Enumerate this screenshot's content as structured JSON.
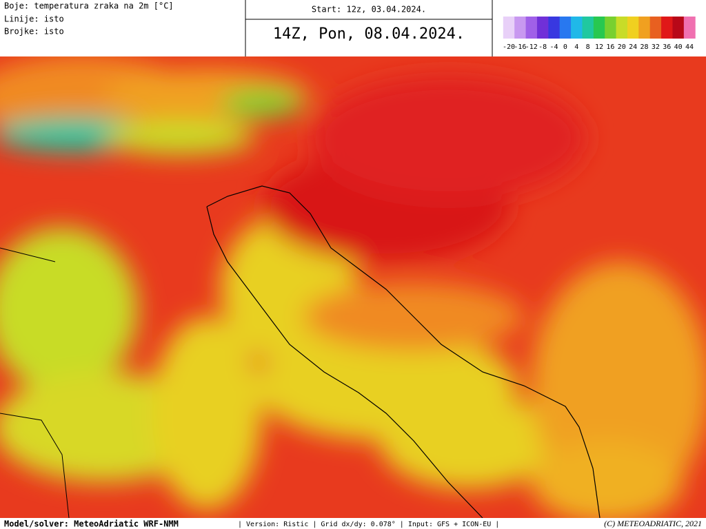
{
  "header": {
    "legend_lines": [
      "Boje: temperatura zraka na 2m [°C]",
      "Linije: isto",
      "Brojke: isto"
    ],
    "start": "Start: 12z, 03.04.2024.",
    "valid": "14Z, Pon, 08.04.2024."
  },
  "colorbar": {
    "ticks": [
      -20,
      -16,
      -12,
      -8,
      -4,
      0,
      4,
      8,
      12,
      16,
      20,
      24,
      28,
      32,
      36,
      40,
      44
    ],
    "colors": [
      "#e8d0f8",
      "#c898f0",
      "#a060e8",
      "#7030d8",
      "#3838e0",
      "#2878f0",
      "#20b8e8",
      "#20c8a0",
      "#28c850",
      "#78d030",
      "#c8dc28",
      "#f0d020",
      "#f0a020",
      "#e86020",
      "#e01818",
      "#b80818",
      "#f070b0"
    ]
  },
  "footer": {
    "model": "Model/solver: MeteoAdriatic WRF-NMM",
    "info": "| Version: Ristic | Grid dx/dy: 0.078° | Input: GFS + ICON-EU |",
    "copyright": "(C) METEOADRIATIC, 2021"
  }
}
